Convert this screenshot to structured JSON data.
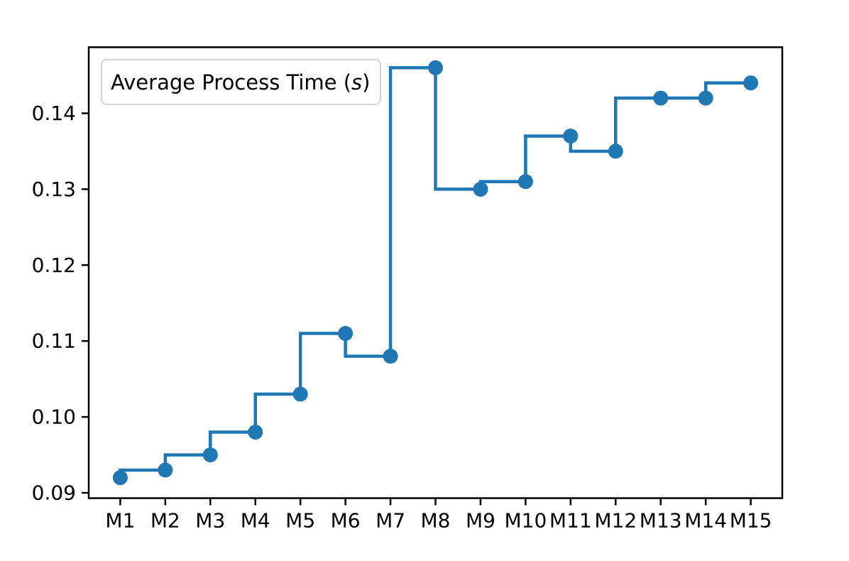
{
  "chart_data": {
    "type": "line",
    "drawstyle": "steps-pre",
    "title": "",
    "xlabel": "",
    "ylabel": "",
    "categories": [
      "M1",
      "M2",
      "M3",
      "M4",
      "M5",
      "M6",
      "M7",
      "M8",
      "M9",
      "M10",
      "M11",
      "M12",
      "M13",
      "M14",
      "M15"
    ],
    "values": [
      0.092,
      0.093,
      0.095,
      0.098,
      0.103,
      0.111,
      0.108,
      0.146,
      0.13,
      0.131,
      0.137,
      0.135,
      0.142,
      0.142,
      0.144
    ],
    "series_name": "Average Process Time (s)",
    "legend": {
      "prefix": "Average Process Time (",
      "italic_part": "s",
      "suffix": ")",
      "position": "upper left"
    },
    "ytick_labels": [
      "0.09",
      "0.10",
      "0.11",
      "0.12",
      "0.13",
      "0.14"
    ],
    "ytick_values": [
      0.09,
      0.1,
      0.11,
      0.12,
      0.13,
      0.14
    ],
    "ylim": [
      0.0893,
      0.1487
    ],
    "xlim": [
      -0.7,
      14.7
    ],
    "grid": false,
    "marker": "circle",
    "line_color": "#1f77b4",
    "marker_color": "#1f77b4",
    "axis_color": "#000000",
    "background_color": "#ffffff",
    "legend_border_color": "#d4d4d4"
  }
}
